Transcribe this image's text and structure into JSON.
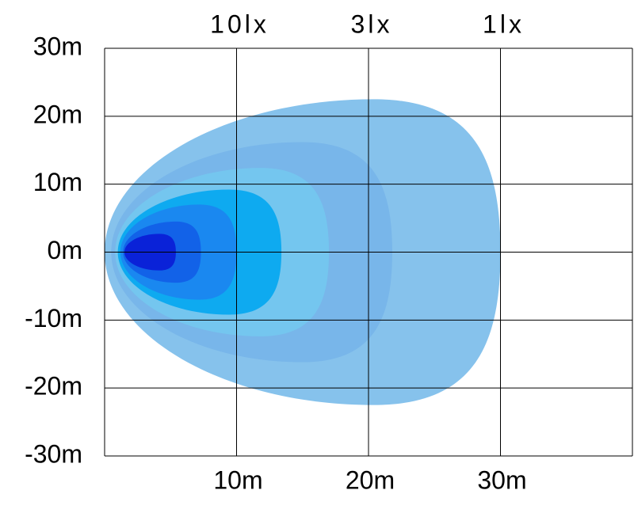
{
  "chart_data": {
    "type": "contour",
    "xlim": [
      0,
      40
    ],
    "ylim": [
      -30,
      30
    ],
    "xticks": [
      {
        "value": 10,
        "label": "10m"
      },
      {
        "value": 20,
        "label": "20m"
      },
      {
        "value": 30,
        "label": "30m"
      }
    ],
    "yticks": [
      {
        "value": 30,
        "label": "30m"
      },
      {
        "value": 20,
        "label": "20m"
      },
      {
        "value": 10,
        "label": "10m"
      },
      {
        "value": 0,
        "label": "0m"
      },
      {
        "value": -10,
        "label": "-10m"
      },
      {
        "value": -20,
        "label": "-20m"
      },
      {
        "value": -30,
        "label": "-30m"
      }
    ],
    "annotations": [
      {
        "x": 10,
        "text": "10lx"
      },
      {
        "x": 20,
        "text": "3lx"
      },
      {
        "x": 30,
        "text": "1lx"
      }
    ],
    "grid": true,
    "contours": [
      {
        "start": 0,
        "reach": 30,
        "halfwidth": 22.5,
        "color": "#86c2ec"
      },
      {
        "start": 0.5,
        "reach": 21.8,
        "halfwidth": 16.2,
        "color": "#78b6ea"
      },
      {
        "start": 0.8,
        "reach": 17,
        "halfwidth": 12.4,
        "color": "#74c6ef"
      },
      {
        "start": 1,
        "reach": 13.4,
        "halfwidth": 9.2,
        "color": "#0eaaf0"
      },
      {
        "start": 1.2,
        "reach": 10,
        "halfwidth": 7,
        "color": "#1a88f0"
      },
      {
        "start": 1.4,
        "reach": 7.3,
        "halfwidth": 4.5,
        "color": "#1262e8"
      },
      {
        "start": 1.5,
        "reach": 5.4,
        "halfwidth": 2.7,
        "color": "#0a22d8"
      }
    ]
  }
}
